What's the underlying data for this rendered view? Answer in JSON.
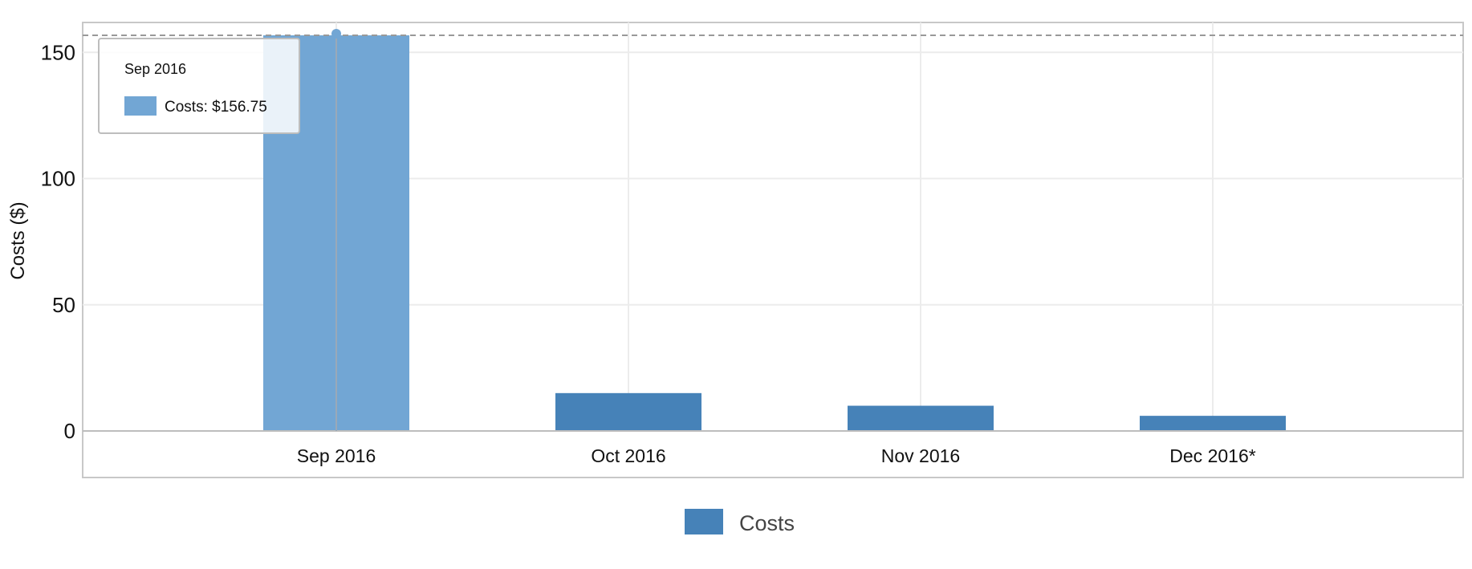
{
  "chart_data": {
    "type": "bar",
    "categories": [
      "Sep 2016",
      "Oct 2016",
      "Nov 2016",
      "Dec 2016*"
    ],
    "series": [
      {
        "name": "Costs",
        "values": [
          156.75,
          15,
          10,
          6
        ],
        "color": "#4682b8"
      }
    ],
    "highlighted_index": 0,
    "highlight_color": "#72a6d4",
    "reference_line_value": 156.75,
    "ylabel": "Costs ($)",
    "ylim": [
      0,
      160
    ],
    "yticks": [
      0,
      50,
      100,
      150
    ],
    "grid": true,
    "legend_position": "bottom-center"
  },
  "tooltip": {
    "title": "Sep 2016",
    "text": "Costs: $156.75"
  },
  "legend": {
    "label": "Costs"
  }
}
